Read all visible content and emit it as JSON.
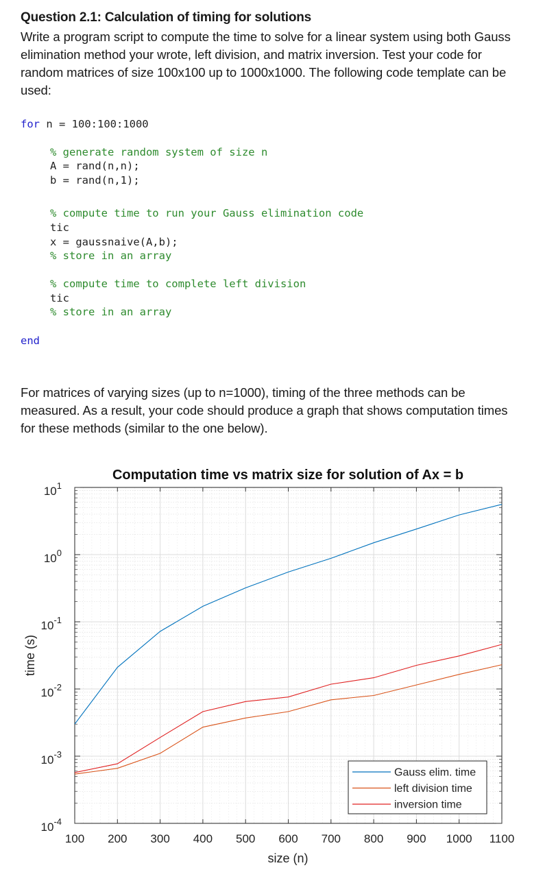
{
  "document": {
    "heading": "Question 2.1: Calculation of timing for solutions",
    "intro_lines": [
      "Write a program script to compute the time to solve for a linear system using both Gauss",
      "elimination method your wrote, left division, and matrix inversion. Test your code for",
      "random matrices of size 100x100 up to 1000x1000. The following code template can be",
      "used:"
    ],
    "code": {
      "for_kw": "for",
      "for_rest": " n = 100:100:1000",
      "c1": "% generate random system of size n",
      "l1": "A = rand(n,n);",
      "l2": "b = rand(n,1);",
      "c2": "% compute time to run your Gauss elimination code",
      "l3": "tic",
      "l4": "x = gaussnaive(A,b);",
      "c3": "% store in an array",
      "c4": "% compute time to complete left division",
      "l5": "tic",
      "c5": "% store in an array",
      "end_kw": "end"
    },
    "outro_lines": [
      "For matrices of varying sizes (up to n=1000), timing of the three methods can be",
      "measured. As a result, your code should produce a graph that shows computation times",
      "for these methods (similar to the one below)."
    ]
  },
  "chart_data": {
    "type": "line",
    "title": "Computation time vs matrix size for solution of Ax = b",
    "xlabel": "size (n)",
    "ylabel": "time (s)",
    "xlim": [
      100,
      1100
    ],
    "ylim": [
      0.0001,
      10
    ],
    "yscale": "log",
    "grid": true,
    "legend_position": "bottom-right",
    "x_ticks": [
      "100",
      "200",
      "300",
      "400",
      "500",
      "600",
      "700",
      "800",
      "900",
      "1000",
      "1100"
    ],
    "y_ticks": [
      {
        "base": "10",
        "exp": "1",
        "value": 10
      },
      {
        "base": "10",
        "exp": "0",
        "value": 1
      },
      {
        "base": "10",
        "exp": "-1",
        "value": 0.1
      },
      {
        "base": "10",
        "exp": "-2",
        "value": 0.01
      },
      {
        "base": "10",
        "exp": "-3",
        "value": 0.001
      },
      {
        "base": "10",
        "exp": "-4",
        "value": 0.0001
      }
    ],
    "x": [
      100,
      200,
      300,
      400,
      500,
      600,
      700,
      800,
      900,
      1000,
      1100
    ],
    "series": [
      {
        "name": "Gauss elim. time",
        "color": "#0072bd",
        "values": [
          0.003,
          0.021,
          0.072,
          0.17,
          0.32,
          0.55,
          0.88,
          1.5,
          2.4,
          3.9,
          5.6
        ]
      },
      {
        "name": "left division time",
        "color": "#d95319",
        "values": [
          0.00054,
          0.00066,
          0.0011,
          0.0027,
          0.0037,
          0.0046,
          0.0069,
          0.008,
          0.0115,
          0.0165,
          0.023
        ]
      },
      {
        "name": "inversion time",
        "color": "#e02020",
        "values": [
          0.00057,
          0.00077,
          0.0019,
          0.0046,
          0.0065,
          0.0076,
          0.0118,
          0.0147,
          0.0225,
          0.031,
          0.046
        ]
      }
    ]
  }
}
